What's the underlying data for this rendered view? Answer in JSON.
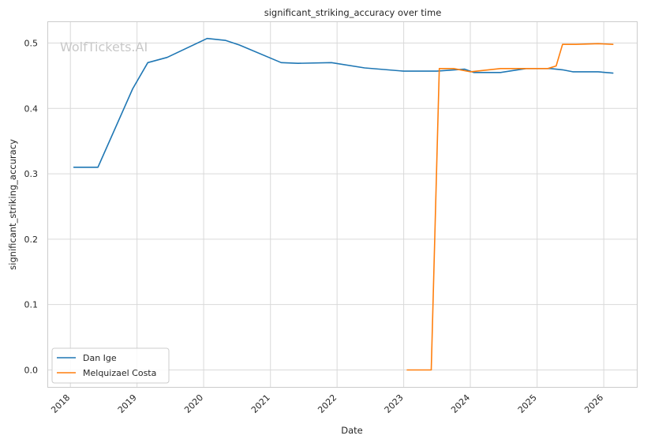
{
  "watermark": "WolfTickets.AI",
  "chart_data": {
    "type": "line",
    "title": "significant_striking_accuracy over time",
    "xlabel": "Date",
    "ylabel": "significant_striking_accuracy",
    "x_ticks": [
      "2018",
      "2019",
      "2020",
      "2021",
      "2022",
      "2023",
      "2024",
      "2025",
      "2026"
    ],
    "y_ticks": [
      "0.0",
      "0.1",
      "0.2",
      "0.3",
      "0.4",
      "0.5"
    ],
    "xlim": [
      "2017-09-01",
      "2026-07-01"
    ],
    "ylim": [
      -0.026,
      0.532
    ],
    "grid": true,
    "legend_position": "lower-left",
    "series": [
      {
        "name": "Dan Ige",
        "color": "#1f77b4",
        "points": [
          [
            "2018-01-20",
            0.31
          ],
          [
            "2018-06-01",
            0.31
          ],
          [
            "2018-12-08",
            0.43
          ],
          [
            "2019-03-01",
            0.47
          ],
          [
            "2019-06-15",
            0.478
          ],
          [
            "2020-01-20",
            0.507
          ],
          [
            "2020-05-01",
            0.504
          ],
          [
            "2020-07-15",
            0.497
          ],
          [
            "2021-03-01",
            0.47
          ],
          [
            "2021-06-01",
            0.469
          ],
          [
            "2021-12-01",
            0.47
          ],
          [
            "2022-06-01",
            0.462
          ],
          [
            "2023-01-01",
            0.457
          ],
          [
            "2023-07-01",
            0.457
          ],
          [
            "2023-12-01",
            0.46
          ],
          [
            "2024-01-20",
            0.455
          ],
          [
            "2024-06-15",
            0.455
          ],
          [
            "2024-11-01",
            0.461
          ],
          [
            "2025-03-15",
            0.461
          ],
          [
            "2025-05-20",
            0.459
          ],
          [
            "2025-07-15",
            0.456
          ],
          [
            "2025-12-01",
            0.456
          ],
          [
            "2026-02-20",
            0.454
          ]
        ]
      },
      {
        "name": "Melquizael Costa",
        "color": "#ff7f0e",
        "points": [
          [
            "2023-01-20",
            0.0
          ],
          [
            "2023-06-01",
            0.0
          ],
          [
            "2023-07-15",
            0.461
          ],
          [
            "2023-10-01",
            0.461
          ],
          [
            "2024-01-01",
            0.456
          ],
          [
            "2024-06-15",
            0.461
          ],
          [
            "2025-03-01",
            0.461
          ],
          [
            "2025-04-15",
            0.465
          ],
          [
            "2025-05-20",
            0.498
          ],
          [
            "2025-08-01",
            0.498
          ],
          [
            "2025-12-01",
            0.499
          ],
          [
            "2026-02-20",
            0.498
          ]
        ]
      }
    ]
  }
}
